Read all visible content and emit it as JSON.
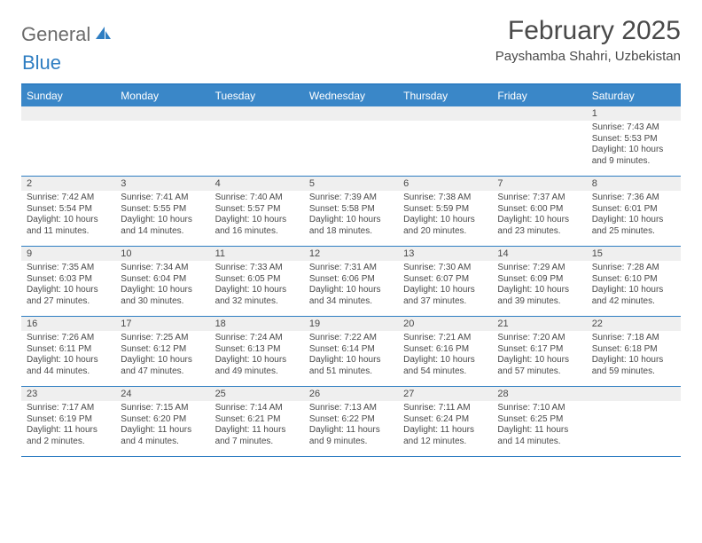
{
  "logo": {
    "text1": "General",
    "text2": "Blue"
  },
  "header": {
    "month_title": "February 2025",
    "location": "Payshamba Shahri, Uzbekistan"
  },
  "colors": {
    "accent": "#3a87c8",
    "border": "#2f7ec2",
    "stripe": "#efefef",
    "text": "#494949",
    "logo_gray": "#6b6b6b"
  },
  "day_labels": [
    "Sunday",
    "Monday",
    "Tuesday",
    "Wednesday",
    "Thursday",
    "Friday",
    "Saturday"
  ],
  "weeks": [
    [
      {
        "n": "",
        "sr": "",
        "ss": "",
        "dl": ""
      },
      {
        "n": "",
        "sr": "",
        "ss": "",
        "dl": ""
      },
      {
        "n": "",
        "sr": "",
        "ss": "",
        "dl": ""
      },
      {
        "n": "",
        "sr": "",
        "ss": "",
        "dl": ""
      },
      {
        "n": "",
        "sr": "",
        "ss": "",
        "dl": ""
      },
      {
        "n": "",
        "sr": "",
        "ss": "",
        "dl": ""
      },
      {
        "n": "1",
        "sr": "Sunrise: 7:43 AM",
        "ss": "Sunset: 5:53 PM",
        "dl": "Daylight: 10 hours and 9 minutes."
      }
    ],
    [
      {
        "n": "2",
        "sr": "Sunrise: 7:42 AM",
        "ss": "Sunset: 5:54 PM",
        "dl": "Daylight: 10 hours and 11 minutes."
      },
      {
        "n": "3",
        "sr": "Sunrise: 7:41 AM",
        "ss": "Sunset: 5:55 PM",
        "dl": "Daylight: 10 hours and 14 minutes."
      },
      {
        "n": "4",
        "sr": "Sunrise: 7:40 AM",
        "ss": "Sunset: 5:57 PM",
        "dl": "Daylight: 10 hours and 16 minutes."
      },
      {
        "n": "5",
        "sr": "Sunrise: 7:39 AM",
        "ss": "Sunset: 5:58 PM",
        "dl": "Daylight: 10 hours and 18 minutes."
      },
      {
        "n": "6",
        "sr": "Sunrise: 7:38 AM",
        "ss": "Sunset: 5:59 PM",
        "dl": "Daylight: 10 hours and 20 minutes."
      },
      {
        "n": "7",
        "sr": "Sunrise: 7:37 AM",
        "ss": "Sunset: 6:00 PM",
        "dl": "Daylight: 10 hours and 23 minutes."
      },
      {
        "n": "8",
        "sr": "Sunrise: 7:36 AM",
        "ss": "Sunset: 6:01 PM",
        "dl": "Daylight: 10 hours and 25 minutes."
      }
    ],
    [
      {
        "n": "9",
        "sr": "Sunrise: 7:35 AM",
        "ss": "Sunset: 6:03 PM",
        "dl": "Daylight: 10 hours and 27 minutes."
      },
      {
        "n": "10",
        "sr": "Sunrise: 7:34 AM",
        "ss": "Sunset: 6:04 PM",
        "dl": "Daylight: 10 hours and 30 minutes."
      },
      {
        "n": "11",
        "sr": "Sunrise: 7:33 AM",
        "ss": "Sunset: 6:05 PM",
        "dl": "Daylight: 10 hours and 32 minutes."
      },
      {
        "n": "12",
        "sr": "Sunrise: 7:31 AM",
        "ss": "Sunset: 6:06 PM",
        "dl": "Daylight: 10 hours and 34 minutes."
      },
      {
        "n": "13",
        "sr": "Sunrise: 7:30 AM",
        "ss": "Sunset: 6:07 PM",
        "dl": "Daylight: 10 hours and 37 minutes."
      },
      {
        "n": "14",
        "sr": "Sunrise: 7:29 AM",
        "ss": "Sunset: 6:09 PM",
        "dl": "Daylight: 10 hours and 39 minutes."
      },
      {
        "n": "15",
        "sr": "Sunrise: 7:28 AM",
        "ss": "Sunset: 6:10 PM",
        "dl": "Daylight: 10 hours and 42 minutes."
      }
    ],
    [
      {
        "n": "16",
        "sr": "Sunrise: 7:26 AM",
        "ss": "Sunset: 6:11 PM",
        "dl": "Daylight: 10 hours and 44 minutes."
      },
      {
        "n": "17",
        "sr": "Sunrise: 7:25 AM",
        "ss": "Sunset: 6:12 PM",
        "dl": "Daylight: 10 hours and 47 minutes."
      },
      {
        "n": "18",
        "sr": "Sunrise: 7:24 AM",
        "ss": "Sunset: 6:13 PM",
        "dl": "Daylight: 10 hours and 49 minutes."
      },
      {
        "n": "19",
        "sr": "Sunrise: 7:22 AM",
        "ss": "Sunset: 6:14 PM",
        "dl": "Daylight: 10 hours and 51 minutes."
      },
      {
        "n": "20",
        "sr": "Sunrise: 7:21 AM",
        "ss": "Sunset: 6:16 PM",
        "dl": "Daylight: 10 hours and 54 minutes."
      },
      {
        "n": "21",
        "sr": "Sunrise: 7:20 AM",
        "ss": "Sunset: 6:17 PM",
        "dl": "Daylight: 10 hours and 57 minutes."
      },
      {
        "n": "22",
        "sr": "Sunrise: 7:18 AM",
        "ss": "Sunset: 6:18 PM",
        "dl": "Daylight: 10 hours and 59 minutes."
      }
    ],
    [
      {
        "n": "23",
        "sr": "Sunrise: 7:17 AM",
        "ss": "Sunset: 6:19 PM",
        "dl": "Daylight: 11 hours and 2 minutes."
      },
      {
        "n": "24",
        "sr": "Sunrise: 7:15 AM",
        "ss": "Sunset: 6:20 PM",
        "dl": "Daylight: 11 hours and 4 minutes."
      },
      {
        "n": "25",
        "sr": "Sunrise: 7:14 AM",
        "ss": "Sunset: 6:21 PM",
        "dl": "Daylight: 11 hours and 7 minutes."
      },
      {
        "n": "26",
        "sr": "Sunrise: 7:13 AM",
        "ss": "Sunset: 6:22 PM",
        "dl": "Daylight: 11 hours and 9 minutes."
      },
      {
        "n": "27",
        "sr": "Sunrise: 7:11 AM",
        "ss": "Sunset: 6:24 PM",
        "dl": "Daylight: 11 hours and 12 minutes."
      },
      {
        "n": "28",
        "sr": "Sunrise: 7:10 AM",
        "ss": "Sunset: 6:25 PM",
        "dl": "Daylight: 11 hours and 14 minutes."
      },
      {
        "n": "",
        "sr": "",
        "ss": "",
        "dl": ""
      }
    ]
  ]
}
